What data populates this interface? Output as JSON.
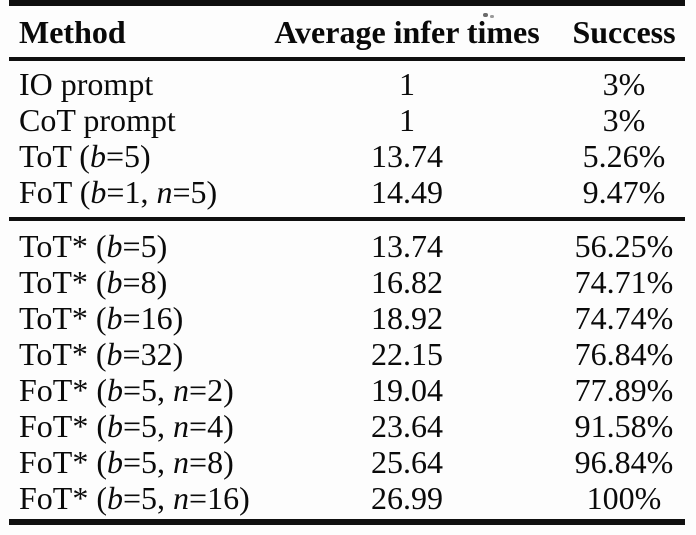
{
  "colors": {
    "background": "#fdfdfd",
    "text": "#0a0a0a",
    "rule": "#101010"
  },
  "table": {
    "headers": [
      "Method",
      "Average infer times",
      "Success"
    ],
    "italic_variables": [
      "b",
      "n"
    ],
    "groups": [
      {
        "rows": [
          {
            "method": "IO prompt",
            "avg_infer_times": "1",
            "success": "3%"
          },
          {
            "method": "CoT prompt",
            "avg_infer_times": "1",
            "success": "3%"
          },
          {
            "method": "ToT (b=5)",
            "avg_infer_times": "13.74",
            "success": "5.26%"
          },
          {
            "method": "FoT (b=1, n=5)",
            "avg_infer_times": "14.49",
            "success": "9.47%"
          }
        ]
      },
      {
        "rows": [
          {
            "method": "ToT* (b=5)",
            "avg_infer_times": "13.74",
            "success": "56.25%"
          },
          {
            "method": "ToT* (b=8)",
            "avg_infer_times": "16.82",
            "success": "74.71%"
          },
          {
            "method": "ToT* (b=16)",
            "avg_infer_times": "18.92",
            "success": "74.74%"
          },
          {
            "method": "ToT* (b=32)",
            "avg_infer_times": "22.15",
            "success": "76.84%"
          },
          {
            "method": "FoT* (b=5, n=2)",
            "avg_infer_times": "19.04",
            "success": "77.89%"
          },
          {
            "method": "FoT* (b=5, n=4)",
            "avg_infer_times": "23.64",
            "success": "91.58%"
          },
          {
            "method": "FoT* (b=5, n=8)",
            "avg_infer_times": "25.64",
            "success": "96.84%"
          },
          {
            "method": "FoT* (b=5, n=16)",
            "avg_infer_times": "26.99",
            "success": "100%"
          }
        ]
      }
    ]
  }
}
